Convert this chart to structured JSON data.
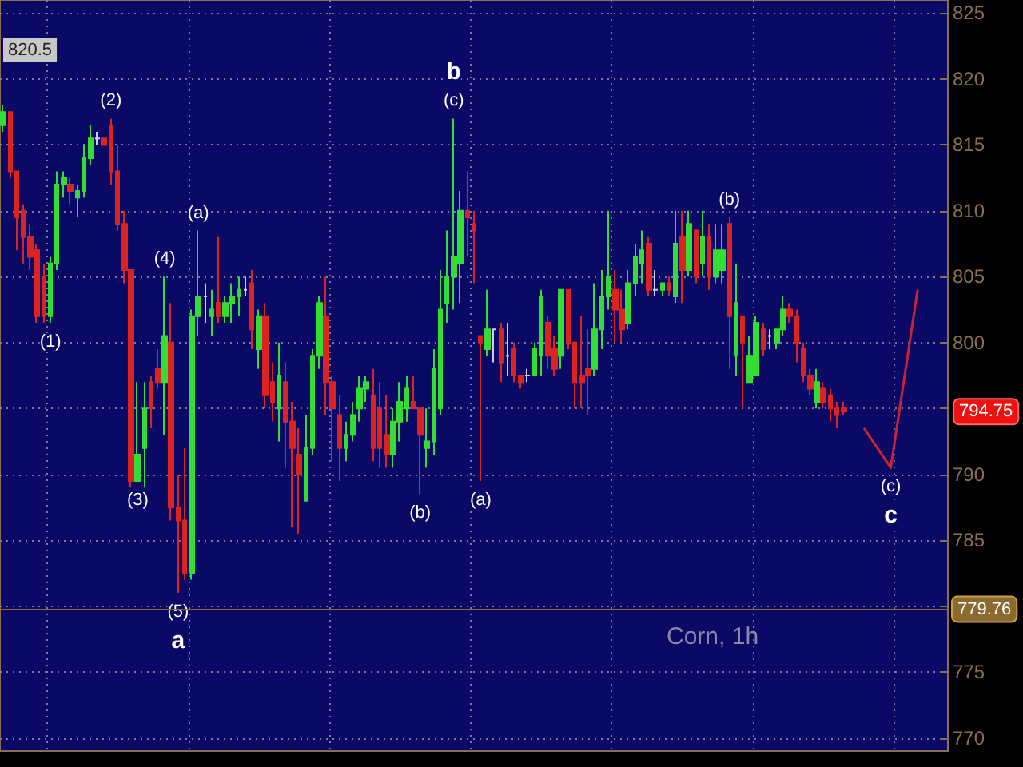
{
  "chart_data": {
    "type": "candlestick",
    "title": "Corn, 1h",
    "categories": [
      null,
      null,
      null,
      null,
      null,
      null,
      null,
      null,
      null,
      null,
      null,
      null,
      null,
      null,
      null,
      null,
      null,
      null,
      null,
      null,
      null,
      null,
      null,
      null,
      null,
      null,
      null,
      null,
      null,
      null,
      null,
      null,
      null,
      null,
      null,
      null,
      null,
      null,
      null,
      null,
      null,
      null,
      null,
      null,
      null,
      null,
      null,
      null,
      null,
      null,
      null,
      null,
      null,
      null,
      null,
      null,
      null,
      null,
      null,
      null,
      null,
      null,
      null,
      null,
      null,
      null,
      null,
      null,
      null,
      null,
      null,
      null,
      null,
      null,
      null,
      null,
      null,
      null,
      null,
      null,
      null,
      null,
      null,
      null,
      null,
      null,
      null,
      null,
      null,
      null,
      null,
      null,
      null,
      null,
      null,
      null,
      null,
      null,
      null,
      null,
      null,
      null,
      null,
      null,
      null,
      null,
      null,
      null,
      null,
      null,
      null,
      null,
      null,
      null,
      null,
      null,
      null,
      null,
      null,
      null,
      null,
      null,
      null,
      null,
      null,
      null,
      null,
      null,
      null,
      null,
      null,
      null,
      null,
      null,
      null,
      null,
      null,
      null,
      null,
      null,
      null
    ],
    "ohlc": [
      [
        816.5,
        818,
        816,
        817.5
      ],
      [
        817.5,
        817.5,
        812.5,
        813
      ],
      [
        813,
        813,
        807,
        809.5
      ],
      [
        810,
        810.5,
        806,
        808
      ],
      [
        808,
        809,
        805.5,
        806.5
      ],
      [
        807,
        807.5,
        801.5,
        802
      ],
      [
        805,
        806,
        801.5,
        802
      ],
      [
        802,
        806.5,
        801.5,
        806
      ],
      [
        806,
        813,
        805.5,
        812
      ],
      [
        812,
        813,
        811,
        812.5
      ],
      [
        812,
        812.5,
        810.5,
        811.5
      ],
      [
        811,
        812,
        809.5,
        811.5
      ],
      [
        811.5,
        815,
        811,
        814
      ],
      [
        814,
        816.5,
        813.5,
        815.5
      ],
      [
        815.5,
        816,
        815,
        815.5
      ],
      [
        815.5,
        815.5,
        815,
        815
      ],
      [
        816.5,
        817,
        812,
        813
      ],
      [
        813,
        815,
        808.5,
        809
      ],
      [
        809,
        810,
        804.5,
        805.5
      ],
      [
        805.5,
        805.5,
        789,
        789.5
      ],
      [
        789.5,
        797,
        789.5,
        791.5
      ],
      [
        792,
        797,
        789,
        795
      ],
      [
        797,
        797.5,
        793.5,
        795
      ],
      [
        798,
        799.5,
        796.5,
        797
      ],
      [
        797,
        805,
        793,
        800.5
      ],
      [
        800,
        803,
        786.5,
        787.5
      ],
      [
        787.5,
        790,
        781,
        786.5
      ],
      [
        786.5,
        792,
        782,
        782.5
      ],
      [
        782.5,
        802.5,
        782,
        802
      ],
      [
        802,
        808.5,
        800.5,
        803.5
      ],
      [
        803.5,
        804.5,
        801.5,
        803.5
      ],
      [
        802,
        804,
        800.5,
        802.5
      ],
      [
        803,
        808,
        801.5,
        802
      ],
      [
        802,
        803.5,
        801.5,
        803
      ],
      [
        803,
        804.5,
        801.5,
        803.5
      ],
      [
        803.5,
        805,
        802,
        804
      ],
      [
        804,
        805,
        803.5,
        804
      ],
      [
        804.5,
        805.5,
        799.5,
        801
      ],
      [
        799.5,
        802.5,
        798,
        802
      ],
      [
        802,
        803,
        795,
        796
      ],
      [
        797,
        798.5,
        794,
        795.5
      ],
      [
        795,
        800,
        792.5,
        797.5
      ],
      [
        797,
        798.5,
        790.5,
        794
      ],
      [
        794,
        795.5,
        786,
        792
      ],
      [
        791.5,
        793.5,
        785.5,
        790
      ],
      [
        788,
        794.5,
        788,
        792
      ],
      [
        792,
        799.5,
        791.5,
        799
      ],
      [
        799,
        803.5,
        798,
        803
      ],
      [
        802,
        805,
        794.5,
        797
      ],
      [
        797,
        797.5,
        791,
        795
      ],
      [
        794.5,
        796,
        789.5,
        792
      ],
      [
        792,
        794,
        791,
        793
      ],
      [
        793,
        795.5,
        792.5,
        794.5
      ],
      [
        795,
        797.5,
        794,
        796.5
      ],
      [
        796.5,
        797.5,
        795.5,
        797
      ],
      [
        796,
        798,
        791,
        792
      ],
      [
        795,
        797,
        790.5,
        792
      ],
      [
        793,
        796,
        790.5,
        791.5
      ],
      [
        791.5,
        795,
        790.5,
        794
      ],
      [
        794,
        797,
        792.5,
        795.5
      ],
      [
        795,
        797.5,
        794,
        796.5
      ],
      [
        795.5,
        797.5,
        795,
        795
      ],
      [
        795,
        795,
        788.5,
        793
      ],
      [
        792,
        795,
        790.5,
        792.5
      ],
      [
        792.5,
        799.5,
        791.5,
        798
      ],
      [
        795,
        805.5,
        794.5,
        802.5
      ],
      [
        803,
        808.5,
        801.5,
        805
      ],
      [
        805,
        817,
        802.5,
        806.5
      ],
      [
        806,
        811.5,
        803,
        810
      ],
      [
        810,
        813,
        806.5,
        809.5
      ],
      [
        809,
        810,
        804.5,
        808.5
      ],
      [
        800.5,
        800.5,
        789.5,
        800
      ],
      [
        799.5,
        804,
        799,
        801
      ],
      [
        801,
        801,
        798.5,
        801
      ],
      [
        801,
        801.5,
        797,
        798.5
      ],
      [
        799,
        801.5,
        797.5,
        799
      ],
      [
        799.5,
        800,
        797,
        797.5
      ],
      [
        797.5,
        797.5,
        796.5,
        797
      ],
      [
        797.5,
        798,
        797,
        797.5
      ],
      [
        797.5,
        800,
        797.5,
        799.5
      ],
      [
        799,
        804,
        797.5,
        803.5
      ],
      [
        801.5,
        802,
        798,
        799
      ],
      [
        799.5,
        800.5,
        797.5,
        798
      ],
      [
        799,
        804,
        798,
        804
      ],
      [
        804,
        804,
        799.5,
        800
      ],
      [
        800,
        800,
        795,
        797
      ],
      [
        797.5,
        802,
        795,
        797
      ],
      [
        798,
        801,
        794.5,
        797.5
      ],
      [
        798,
        804.5,
        797.5,
        801
      ],
      [
        801,
        805.5,
        799.5,
        803.5
      ],
      [
        803.5,
        810,
        802.5,
        805
      ],
      [
        804,
        805.5,
        800,
        802.5
      ],
      [
        802.5,
        804,
        800,
        801
      ],
      [
        801.5,
        805.5,
        801,
        804.5
      ],
      [
        804.5,
        807.5,
        803.5,
        806.5
      ],
      [
        806,
        808.5,
        804.5,
        807
      ],
      [
        807.5,
        808,
        803.5,
        804
      ],
      [
        804,
        805.5,
        803.5,
        804
      ],
      [
        804,
        804.5,
        803.5,
        804.5
      ],
      [
        804.5,
        805,
        803.5,
        804
      ],
      [
        803.5,
        810,
        803,
        807.5
      ],
      [
        808,
        810,
        803,
        805.5
      ],
      [
        805.5,
        810,
        805,
        809
      ],
      [
        808.5,
        808.5,
        804.5,
        805
      ],
      [
        806,
        810,
        805,
        808
      ],
      [
        808,
        809,
        804,
        805
      ],
      [
        805,
        809,
        804.5,
        807
      ],
      [
        805.5,
        809,
        804.5,
        807
      ],
      [
        809,
        809.5,
        798,
        802
      ],
      [
        799,
        806,
        797.5,
        803
      ],
      [
        802,
        802,
        795,
        800
      ],
      [
        797,
        800.5,
        797,
        799
      ],
      [
        797.5,
        802,
        797.5,
        801.5
      ],
      [
        801,
        801.5,
        799,
        799.5
      ],
      [
        800.5,
        801,
        799.5,
        800.5
      ],
      [
        800,
        801,
        799.5,
        801
      ],
      [
        801,
        803.5,
        800.5,
        802.5
      ],
      [
        802.5,
        803,
        801.5,
        802
      ],
      [
        802,
        802.5,
        798.5,
        800
      ],
      [
        799.5,
        800,
        797,
        797.5
      ],
      [
        797.5,
        798,
        796,
        796.5
      ],
      [
        795.5,
        798,
        795,
        797
      ],
      [
        796.5,
        797,
        795,
        795.5
      ],
      [
        796,
        796.5,
        794,
        795
      ],
      [
        795,
        795.5,
        793.5,
        794.5
      ],
      [
        795,
        795.5,
        794.5,
        794.75
      ],
      null,
      null,
      null,
      null,
      null,
      null,
      null,
      null,
      null,
      null,
      null,
      null,
      null,
      null,
      null
    ],
    "colors": [
      "#33dd33",
      "#dd2222",
      "#dd2222",
      "#dd2222",
      "#dd2222",
      "#dd2222",
      "#dd2222",
      "#33dd33",
      "#33dd33",
      "#33dd33",
      "#dd2222",
      "#33dd33",
      "#33dd33",
      "#33dd33",
      "#ccccee",
      "#dd2222",
      "#dd2222",
      "#dd2222",
      "#dd2222",
      "#dd2222",
      "#33dd33",
      "#33dd33",
      "#dd2222",
      "#dd2222",
      "#33dd33",
      "#dd2222",
      "#dd2222",
      "#dd2222",
      "#33dd33",
      "#33dd33",
      "#ccccee",
      "#33dd33",
      "#dd2222",
      "#33dd33",
      "#33dd33",
      "#33dd33",
      "#ccccee",
      "#dd2222",
      "#33dd33",
      "#dd2222",
      "#dd2222",
      "#33dd33",
      "#dd2222",
      "#dd2222",
      "#dd2222",
      "#33dd33",
      "#33dd33",
      "#33dd33",
      "#dd2222",
      "#dd2222",
      "#dd2222",
      "#33dd33",
      "#33dd33",
      "#33dd33",
      "#33dd33",
      "#dd2222",
      "#dd2222",
      "#dd2222",
      "#33dd33",
      "#33dd33",
      "#33dd33",
      "#dd2222",
      "#dd2222",
      "#33dd33",
      "#33dd33",
      "#33dd33",
      "#33dd33",
      "#33dd33",
      "#33dd33",
      "#dd2222",
      "#dd2222",
      "#dd2222",
      "#33dd33",
      "#ccccee",
      "#dd2222",
      "#ccccee",
      "#dd2222",
      "#dd2222",
      "#ccccee",
      "#33dd33",
      "#33dd33",
      "#dd2222",
      "#dd2222",
      "#33dd33",
      "#dd2222",
      "#dd2222",
      "#dd2222",
      "#dd2222",
      "#33dd33",
      "#33dd33",
      "#33dd33",
      "#dd2222",
      "#dd2222",
      "#33dd33",
      "#33dd33",
      "#33dd33",
      "#dd2222",
      "#ccccee",
      "#33dd33",
      "#dd2222",
      "#33dd33",
      "#dd2222",
      "#33dd33",
      "#dd2222",
      "#33dd33",
      "#dd2222",
      "#33dd33",
      "#33dd33",
      "#dd2222",
      "#33dd33",
      "#dd2222",
      "#33dd33",
      "#33dd33",
      "#dd2222",
      "#ccccee",
      "#33dd33",
      "#33dd33",
      "#dd2222",
      "#dd2222",
      "#dd2222",
      "#dd2222",
      "#33dd33",
      "#dd2222",
      "#dd2222",
      "#dd2222",
      "#dd2222",
      null,
      null,
      null,
      null,
      null,
      null,
      null,
      null,
      null,
      null,
      null,
      null,
      null,
      null,
      null
    ],
    "value_labels": [
      null,
      null,
      null,
      null,
      null,
      null,
      null,
      "(1)",
      null,
      null,
      null,
      null,
      null,
      null,
      null,
      null,
      "(2)",
      null,
      null,
      null,
      "(3)",
      null,
      null,
      null,
      "(4)",
      null,
      "(5)\na",
      null,
      null,
      "(a)",
      null,
      null,
      null,
      null,
      null,
      null,
      null,
      null,
      null,
      null,
      null,
      null,
      null,
      null,
      null,
      null,
      null,
      null,
      null,
      null,
      null,
      null,
      null,
      null,
      null,
      null,
      null,
      null,
      null,
      null,
      null,
      null,
      "(b)",
      null,
      null,
      null,
      null,
      "b\n(c)",
      null,
      null,
      null,
      "(a)",
      null,
      null,
      null,
      null,
      null,
      null,
      null,
      null,
      null,
      null,
      null,
      null,
      null,
      null,
      null,
      null,
      null,
      null,
      null,
      null,
      null,
      null,
      null,
      null,
      null,
      null,
      null,
      null,
      null,
      null,
      null,
      null,
      null,
      null,
      null,
      null,
      "(b)",
      null,
      null,
      null,
      null,
      null,
      null,
      null,
      null,
      null,
      null,
      null,
      null,
      null,
      null,
      null,
      null,
      null,
      null,
      null,
      null,
      null,
      null,
      null,
      null,
      null,
      null,
      null,
      null,
      null,
      null,
      null,
      null
    ],
    "series": [
      {
        "type": "line",
        "color": "#cc2233",
        "values": [
          null,
          null,
          null,
          null,
          null,
          null,
          null,
          null,
          null,
          null,
          null,
          null,
          null,
          null,
          null,
          null,
          null,
          null,
          null,
          null,
          null,
          null,
          null,
          null,
          null,
          null,
          null,
          null,
          null,
          null,
          null,
          null,
          null,
          null,
          null,
          null,
          null,
          null,
          null,
          null,
          null,
          null,
          null,
          null,
          null,
          null,
          null,
          null,
          null,
          null,
          null,
          null,
          null,
          null,
          null,
          null,
          null,
          null,
          null,
          null,
          null,
          null,
          null,
          null,
          null,
          null,
          null,
          null,
          null,
          null,
          null,
          null,
          null,
          null,
          null,
          null,
          null,
          null,
          null,
          null,
          null,
          null,
          null,
          null,
          null,
          null,
          null,
          null,
          null,
          null,
          null,
          null,
          null,
          null,
          null,
          null,
          null,
          null,
          null,
          null,
          null,
          null,
          null,
          null,
          null,
          null,
          null,
          null,
          null,
          null,
          null,
          null,
          null,
          null,
          null,
          null,
          null,
          null,
          null,
          null,
          null,
          null,
          null,
          null,
          null,
          null,
          null,
          null,
          793.5,
          null,
          null,
          null,
          790.5,
          null,
          null,
          null,
          804,
          null,
          null,
          null,
          null
        ],
        "value_labels": [
          null,
          null,
          null,
          null,
          null,
          null,
          null,
          null,
          null,
          null,
          null,
          null,
          null,
          null,
          null,
          null,
          null,
          null,
          null,
          null,
          null,
          null,
          null,
          null,
          null,
          null,
          null,
          null,
          null,
          null,
          null,
          null,
          null,
          null,
          null,
          null,
          null,
          null,
          null,
          null,
          null,
          null,
          null,
          null,
          null,
          null,
          null,
          null,
          null,
          null,
          null,
          null,
          null,
          null,
          null,
          null,
          null,
          null,
          null,
          null,
          null,
          null,
          null,
          null,
          null,
          null,
          null,
          null,
          null,
          null,
          null,
          null,
          null,
          null,
          null,
          null,
          null,
          null,
          null,
          null,
          null,
          null,
          null,
          null,
          null,
          null,
          null,
          null,
          null,
          null,
          null,
          null,
          null,
          null,
          null,
          null,
          null,
          null,
          null,
          null,
          null,
          null,
          null,
          null,
          null,
          null,
          null,
          null,
          null,
          null,
          null,
          null,
          null,
          null,
          null,
          null,
          null,
          null,
          null,
          null,
          null,
          null,
          null,
          null,
          null,
          null,
          null,
          null,
          null,
          null,
          null,
          null,
          "(c)\nc",
          null,
          null,
          null,
          null,
          null,
          null,
          null,
          null
        ]
      }
    ],
    "ylim": [
      769,
      826
    ],
    "yticks": [
      770,
      775,
      {
        "value": 780,
        "label": null
      },
      785,
      790,
      {
        "value": 795,
        "label": null
      },
      800,
      805,
      810,
      815,
      820,
      825
    ],
    "tick_labels": "y",
    "grid": true,
    "ref_lines": [
      {
        "axis": "y",
        "value": 779.76,
        "label": "779.76",
        "color": "#8a6a30"
      }
    ],
    "annotations": [
      "820.5",
      "794.75"
    ]
  }
}
